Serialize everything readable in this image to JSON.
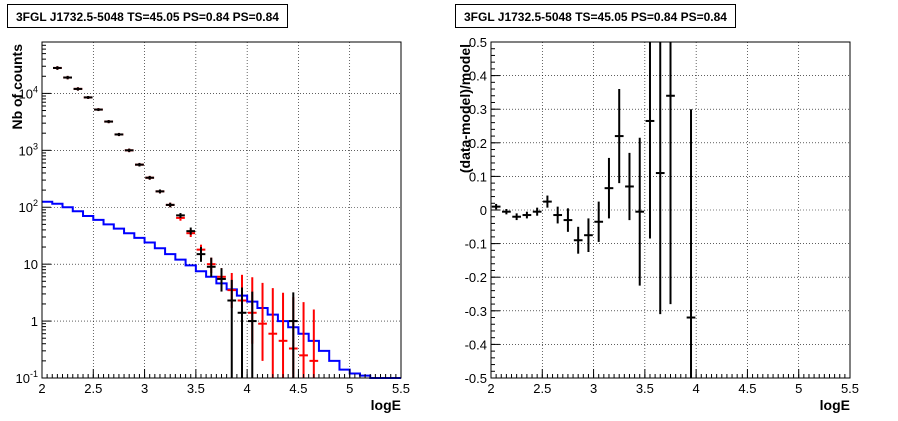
{
  "chart_data": [
    {
      "type": "line",
      "title": "3FGL J1732.5-5048 TS=45.05 PS=0.84 PS=0.84",
      "xlabel": "logE",
      "ylabel": "Nb of counts",
      "xlim": [
        2,
        5.5
      ],
      "ylim": [
        0.1,
        80000
      ],
      "yscale": "log",
      "grid": true,
      "x_ticks": [
        "2",
        "2.5",
        "3",
        "3.5",
        "4",
        "4.5",
        "5",
        "5.5"
      ],
      "y_ticks": [
        "10^-1",
        "1",
        "10",
        "10^2",
        "10^3",
        "10^4"
      ],
      "bin_width": 0.1,
      "series": [
        {
          "color": "#0000ff",
          "style": "step",
          "x": [
            2.0,
            2.1,
            2.2,
            2.3,
            2.4,
            2.5,
            2.6,
            2.7,
            2.8,
            2.9,
            3.0,
            3.1,
            3.2,
            3.3,
            3.4,
            3.5,
            3.6,
            3.7,
            3.8,
            3.9,
            4.0,
            4.1,
            4.2,
            4.3,
            4.4,
            4.5,
            4.6,
            4.7,
            4.8,
            4.9,
            5.0,
            5.1,
            5.2,
            5.3,
            5.4
          ],
          "y": [
            125,
            115,
            100,
            85,
            70,
            60,
            50,
            42,
            35,
            29,
            24,
            19,
            15,
            12,
            9.5,
            7.5,
            6,
            4.6,
            3.6,
            2.8,
            2.2,
            1.7,
            1.3,
            1.0,
            0.78,
            0.6,
            0.45,
            0.3,
            0.2,
            0.14,
            0.12,
            0.11,
            0.1,
            0.1,
            0.1
          ]
        },
        {
          "color": "#ff0000",
          "style": "markers",
          "x": [
            2.15,
            2.25,
            2.35,
            2.45,
            2.55,
            2.65,
            2.75,
            2.85,
            2.95,
            3.05,
            3.15,
            3.25,
            3.35,
            3.45,
            3.55,
            3.65,
            3.75,
            3.85,
            3.95,
            4.05,
            4.15,
            4.25,
            4.35,
            4.45,
            4.55,
            4.65
          ],
          "y": [
            28000,
            19000,
            12000,
            8500,
            5200,
            3200,
            1900,
            1000,
            560,
            330,
            190,
            110,
            65,
            35,
            18,
            10,
            6,
            3.5,
            2.3,
            1.4,
            0.9,
            0.6,
            0.45,
            0.33,
            0.25,
            0.2
          ],
          "err_low": [
            2000,
            1300,
            800,
            500,
            300,
            200,
            120,
            70,
            40,
            25,
            15,
            10,
            7,
            5,
            4,
            3,
            2.3,
            1.8,
            1.5,
            1.0,
            0.7,
            0.5,
            0.35,
            0.28,
            0.22,
            0.1
          ],
          "err_high": [
            2000,
            1300,
            800,
            500,
            300,
            200,
            120,
            70,
            40,
            25,
            15,
            10,
            7,
            5,
            4,
            3,
            2.5,
            3.5,
            4.2,
            4.5,
            3.8,
            3.2,
            2.7,
            2.3,
            1.9,
            1.4
          ]
        },
        {
          "color": "#000000",
          "style": "markers",
          "x": [
            2.15,
            2.25,
            2.35,
            2.45,
            2.55,
            2.65,
            2.75,
            2.85,
            2.95,
            3.05,
            3.15,
            3.25,
            3.35,
            3.45,
            3.55,
            3.65,
            3.75,
            3.85,
            3.95,
            4.05,
            4.45
          ],
          "y": [
            28000,
            19000,
            12000,
            8500,
            5200,
            3200,
            1900,
            1000,
            560,
            330,
            190,
            110,
            72,
            38,
            15,
            9,
            5.5,
            2.3,
            1.4,
            1.0,
            1.0
          ],
          "err_low": [
            2000,
            1300,
            800,
            500,
            300,
            200,
            120,
            70,
            40,
            25,
            15,
            10,
            7,
            5,
            4,
            3,
            2.2,
            2.2,
            1.3,
            0.9,
            0.9
          ],
          "err_high": [
            2000,
            1300,
            800,
            500,
            300,
            200,
            120,
            70,
            40,
            25,
            15,
            10,
            7,
            6,
            5,
            4,
            3,
            3,
            2.5,
            2.3,
            2.2
          ]
        }
      ]
    },
    {
      "type": "scatter",
      "title": "3FGL J1732.5-5048 TS=45.05 PS=0.84 PS=0.84",
      "xlabel": "logE",
      "ylabel": "(data-model)/model",
      "xlim": [
        2,
        5.5
      ],
      "ylim": [
        -0.5,
        0.5
      ],
      "grid": true,
      "x_ticks": [
        "2",
        "2.5",
        "3",
        "3.5",
        "4",
        "4.5",
        "5",
        "5.5"
      ],
      "y_ticks": [
        "-0.5",
        "-0.4",
        "-0.3",
        "-0.2",
        "-0.1",
        "0",
        "0.1",
        "0.2",
        "0.3",
        "0.4",
        "0.5"
      ],
      "bin_width": 0.1,
      "series": [
        {
          "color": "#000000",
          "x": [
            2.05,
            2.15,
            2.25,
            2.35,
            2.45,
            2.55,
            2.65,
            2.75,
            2.85,
            2.95,
            3.05,
            3.15,
            3.25,
            3.35,
            3.45,
            3.55,
            3.65,
            3.75,
            3.95
          ],
          "y": [
            0.01,
            -0.005,
            -0.02,
            -0.015,
            -0.005,
            0.025,
            -0.015,
            -0.03,
            -0.09,
            -0.075,
            -0.035,
            0.065,
            0.22,
            0.07,
            -0.005,
            0.265,
            0.11,
            0.34,
            -0.32
          ],
          "err": [
            0.008,
            0.008,
            0.01,
            0.01,
            0.012,
            0.018,
            0.025,
            0.035,
            0.04,
            0.05,
            0.06,
            0.09,
            0.14,
            0.1,
            0.22,
            0.35,
            0.42,
            0.62,
            0.62
          ]
        }
      ]
    }
  ]
}
